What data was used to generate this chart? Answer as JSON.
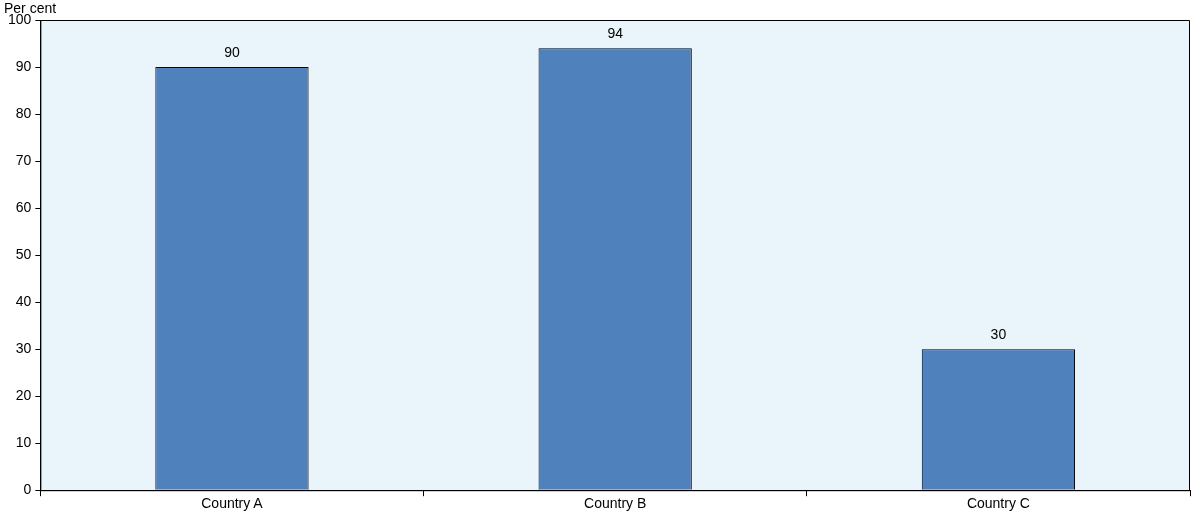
{
  "chart_data": {
    "type": "bar",
    "ylabel": "Per cent",
    "categories": [
      "Country A",
      "Country B",
      "Country C"
    ],
    "values": [
      90,
      94,
      30
    ],
    "color": "#4f81bd",
    "ylim": [
      0,
      100
    ],
    "yticks": [
      0,
      10,
      20,
      30,
      40,
      50,
      60,
      70,
      80,
      90,
      100
    ],
    "grid": false,
    "legend": false,
    "data_labels": true
  }
}
